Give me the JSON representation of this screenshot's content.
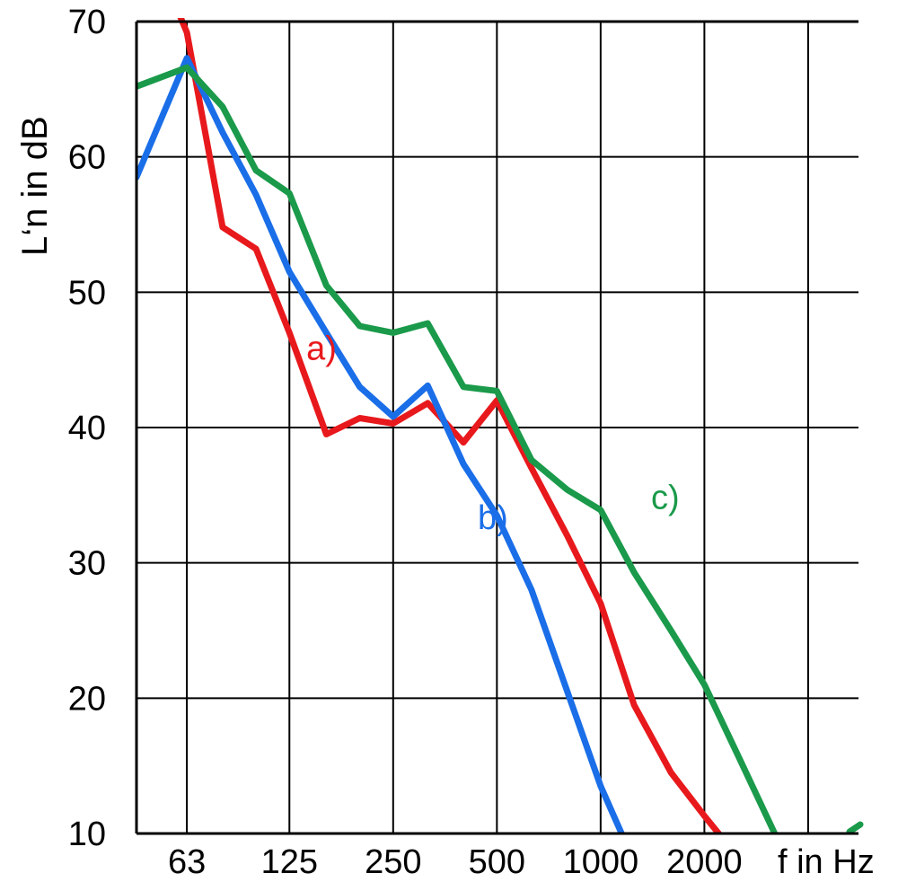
{
  "chart_data": {
    "type": "line",
    "title": "",
    "xlabel": "f in Hz",
    "ylabel": "L‘n in dB",
    "x_scale": "log",
    "xlim": [
      45,
      5600
    ],
    "ylim": [
      10,
      70
    ],
    "grid": true,
    "x_ticks": [
      {
        "value": 63,
        "label": "63"
      },
      {
        "value": 125,
        "label": "125"
      },
      {
        "value": 250,
        "label": "250"
      },
      {
        "value": 500,
        "label": "500"
      },
      {
        "value": 1000,
        "label": "1000"
      },
      {
        "value": 2000,
        "label": "2000"
      }
    ],
    "y_ticks": [
      10,
      20,
      30,
      40,
      50,
      60,
      70
    ],
    "y_tick_labels": [
      "10",
      "20",
      "30",
      "40",
      "50",
      "60",
      "70"
    ],
    "series": [
      {
        "name": "a)",
        "color": "#e8191c",
        "points": [
          [
            60,
            70.5
          ],
          [
            63,
            69.2
          ],
          [
            80,
            54.8
          ],
          [
            100,
            53.2
          ],
          [
            125,
            47.0
          ],
          [
            160,
            39.5
          ],
          [
            200,
            40.7
          ],
          [
            250,
            40.3
          ],
          [
            315,
            41.8
          ],
          [
            400,
            38.9
          ],
          [
            500,
            42.0
          ],
          [
            630,
            37.0
          ],
          [
            800,
            32.0
          ],
          [
            1000,
            27.0
          ],
          [
            1250,
            19.5
          ],
          [
            1600,
            14.5
          ],
          [
            2000,
            11.3
          ],
          [
            2200,
            10.0
          ]
        ]
      },
      {
        "name": "b)",
        "color": "#1a6ee8",
        "points": [
          [
            45,
            58.5
          ],
          [
            63,
            67.3
          ],
          [
            80,
            61.8
          ],
          [
            100,
            57.2
          ],
          [
            125,
            51.5
          ],
          [
            160,
            47.0
          ],
          [
            200,
            43.0
          ],
          [
            250,
            40.8
          ],
          [
            315,
            43.1
          ],
          [
            400,
            37.3
          ],
          [
            500,
            33.5
          ],
          [
            630,
            28.0
          ],
          [
            800,
            20.5
          ],
          [
            1000,
            13.5
          ],
          [
            1150,
            10.0
          ]
        ]
      },
      {
        "name": "c)",
        "color": "#1a9a4a",
        "points": [
          [
            45,
            65.2
          ],
          [
            63,
            66.6
          ],
          [
            80,
            63.7
          ],
          [
            100,
            59.0
          ],
          [
            125,
            57.3
          ],
          [
            160,
            50.5
          ],
          [
            200,
            47.5
          ],
          [
            250,
            47.0
          ],
          [
            315,
            47.7
          ],
          [
            400,
            43.0
          ],
          [
            500,
            42.7
          ],
          [
            630,
            37.6
          ],
          [
            800,
            35.4
          ],
          [
            1000,
            33.9
          ],
          [
            1250,
            29.3
          ],
          [
            1600,
            25.0
          ],
          [
            2000,
            21.0
          ],
          [
            2500,
            15.8
          ],
          [
            3200,
            10.0
          ]
        ]
      }
    ],
    "annotations": [
      {
        "text": "a)",
        "color": "#e8191c",
        "x": 140,
        "y": 45.0
      },
      {
        "text": "b)",
        "color": "#1a6ee8",
        "x": 440,
        "y": 32.5
      },
      {
        "text": "c)",
        "color": "#1a9a4a",
        "x": 1400,
        "y": 34.0
      }
    ]
  }
}
